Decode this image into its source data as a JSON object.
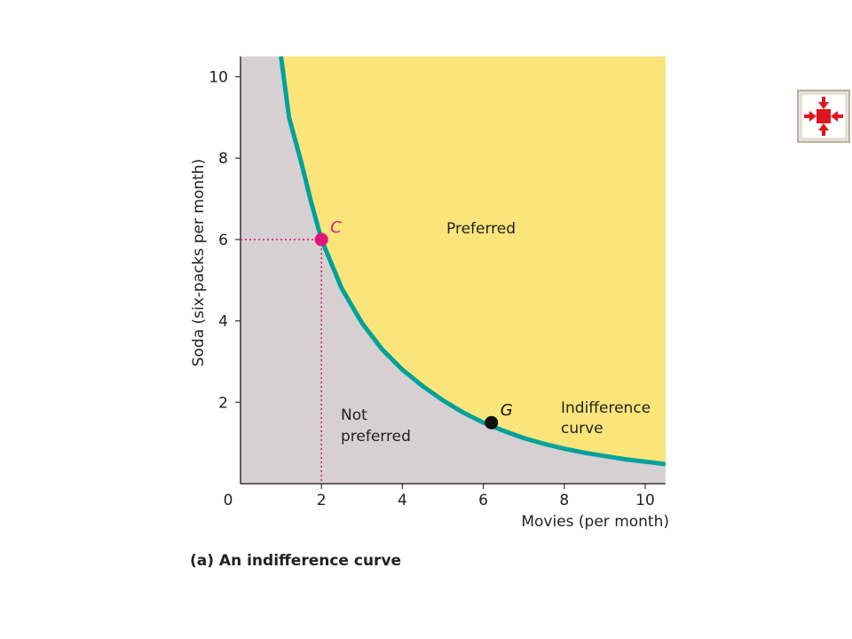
{
  "chart_data": {
    "type": "line",
    "xlabel": "Movies (per month)",
    "ylabel": "Soda (six-packs per month)",
    "xlim": [
      0,
      10.5
    ],
    "ylim": [
      0,
      10.5
    ],
    "x_ticks": [
      "0",
      "2",
      "4",
      "6",
      "8",
      "10"
    ],
    "y_ticks": [
      "2",
      "4",
      "6",
      "8",
      "10"
    ],
    "grid": false,
    "series": [
      {
        "name": "Indifference curve",
        "label_lines": [
          "Indifference",
          "curve"
        ],
        "color": "#00a19a",
        "x": [
          1.0,
          1.2,
          1.5,
          1.75,
          2.0,
          2.5,
          3.0,
          3.5,
          4.0,
          4.5,
          5.0,
          5.5,
          6.0,
          6.5,
          7.0,
          7.5,
          8.0,
          8.5,
          9.0,
          9.5,
          10.0,
          10.5
        ],
        "y": [
          10.5,
          9.0,
          7.9,
          6.9,
          6.0,
          4.8,
          3.95,
          3.3,
          2.8,
          2.4,
          2.05,
          1.75,
          1.5,
          1.3,
          1.12,
          0.98,
          0.86,
          0.76,
          0.68,
          0.6,
          0.54,
          0.48
        ]
      }
    ],
    "regions": {
      "preferred": {
        "label": "Preferred",
        "color": "#fbe57a"
      },
      "not_preferred": {
        "label_lines": [
          "Not",
          "preferred"
        ],
        "color": "#d6d0d3"
      }
    },
    "points": [
      {
        "name": "C",
        "x": 2,
        "y": 6,
        "color": "#e0177a",
        "guides": true
      },
      {
        "name": "G",
        "x": 6.2,
        "y": 1.5,
        "color": "#111111",
        "guides": false
      }
    ],
    "highlight_color": "#e0177a",
    "caption": "(a) An indifference curve"
  },
  "nav": {
    "icon": "collapse-arrows-icon",
    "color": "#e0141e"
  }
}
